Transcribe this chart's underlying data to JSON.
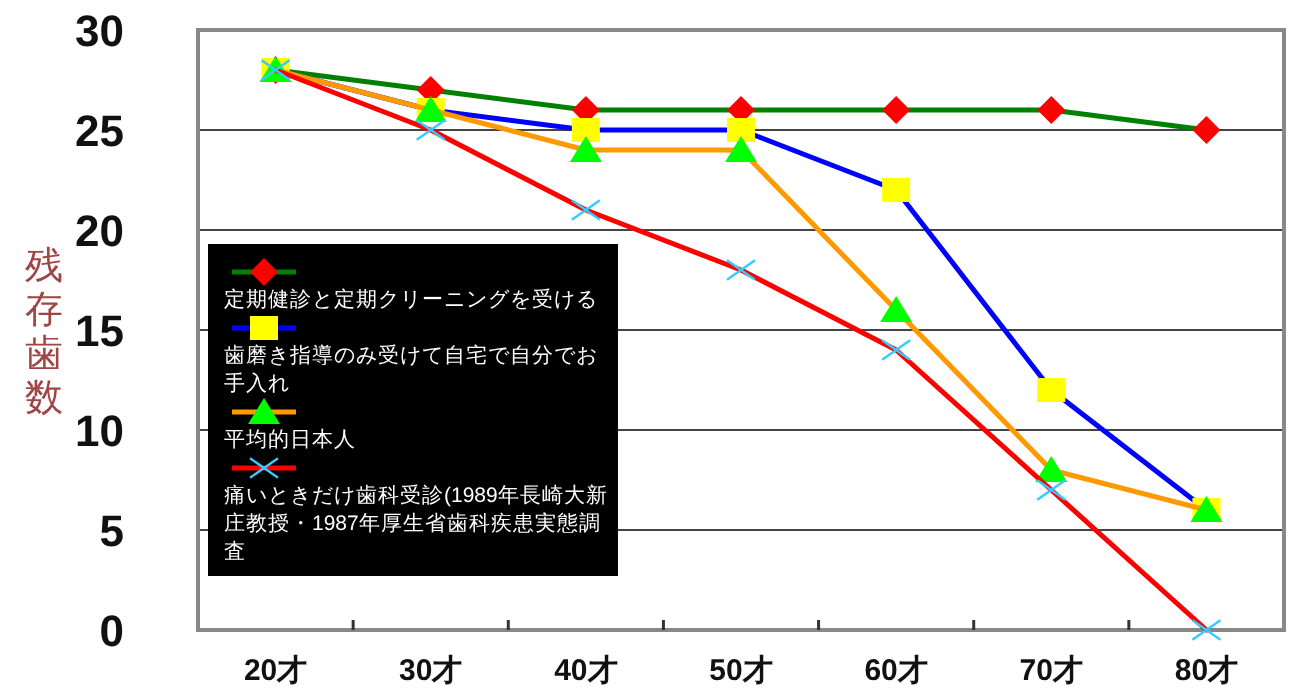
{
  "chart_data": {
    "type": "line",
    "ylabel": "残存歯数",
    "categories": [
      "20才",
      "30才",
      "40才",
      "50才",
      "60才",
      "70才",
      "80才"
    ],
    "ylim": [
      0,
      30
    ],
    "yticks": [
      0,
      5,
      10,
      15,
      20,
      25,
      30
    ],
    "grid": "y",
    "legend": "left",
    "line_style": "solid",
    "series": [
      {
        "name": "定期健診と定期クリーニングを受ける",
        "color": "#008000",
        "marker": "diamond",
        "colors": [
          "#ff0000",
          "#ff0000",
          "#ff0000",
          "#ff0000",
          "#ff0000",
          "#ff0000",
          "#ff0000"
        ],
        "values": [
          28,
          27,
          26,
          26,
          26,
          26,
          25
        ]
      },
      {
        "name": "歯磨き指導のみ受けて自宅で自分でお手入れ",
        "color": "#0000ff",
        "marker": "square",
        "colors": [
          "#ffff00",
          "#ffff00",
          "#ffff00",
          "#ffff00",
          "#ffff00",
          "#ffff00",
          "#ffff00"
        ],
        "values": [
          28,
          26,
          25,
          25,
          22,
          12,
          6
        ]
      },
      {
        "name": "平均的日本人",
        "color": "#ff9900",
        "marker": "triangle",
        "colors": [
          "#00ff00",
          "#00ff00",
          "#00ff00",
          "#00ff00",
          "#00ff00",
          "#00ff00",
          "#00ff00"
        ],
        "values": [
          28,
          26,
          24,
          24,
          16,
          8,
          6
        ]
      },
      {
        "name": "痛いときだけ歯科受診(1989年長崎大新庄教授・1987年厚生省歯科疾患実態調査",
        "color": "#ff0000",
        "marker": "cross",
        "colors": [
          "#33ccff",
          "#33ccff",
          "#33ccff",
          "#33ccff",
          "#33ccff",
          "#33ccff",
          "#33ccff"
        ],
        "values": [
          28,
          25,
          21,
          18,
          14,
          7,
          0
        ]
      }
    ]
  }
}
